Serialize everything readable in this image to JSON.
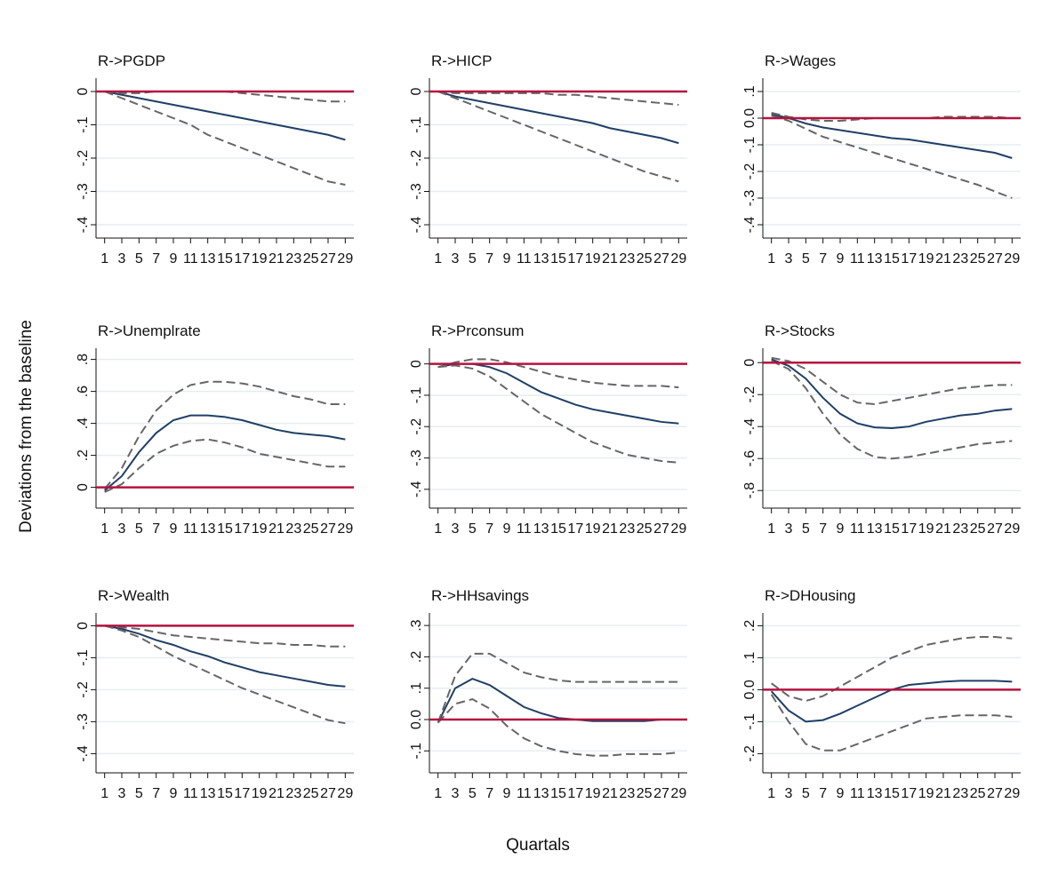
{
  "ylabel": "Deviations from the baseline",
  "xlabel": "Quartals",
  "chart_data": [
    {
      "type": "line",
      "title": "R->PGDP",
      "x": [
        1,
        3,
        5,
        7,
        9,
        11,
        13,
        15,
        17,
        19,
        21,
        23,
        25,
        27,
        29
      ],
      "xlim": [
        0,
        30
      ],
      "xticks": [
        1,
        3,
        5,
        7,
        9,
        11,
        13,
        15,
        17,
        19,
        21,
        23,
        25,
        27,
        29
      ],
      "ylim": [
        -0.44,
        0.04
      ],
      "yticks": [
        0,
        {
          "value": -0.1,
          "label": "-.1"
        },
        {
          "value": -0.2,
          "label": "-.2"
        },
        {
          "value": -0.3,
          "label": "-.3"
        },
        {
          "value": -0.4,
          "label": "-.4"
        }
      ],
      "grid": true,
      "hline": 0,
      "hline_color": "#b5123f",
      "series": [
        {
          "color": "#1f3f66",
          "style": "solid",
          "values": [
            0,
            -0.01,
            -0.02,
            -0.03,
            -0.04,
            -0.05,
            -0.06,
            -0.07,
            -0.08,
            -0.09,
            -0.1,
            -0.11,
            -0.12,
            -0.13,
            -0.145
          ]
        },
        {
          "color": "#666666",
          "style": "dashed",
          "values": [
            0,
            -0.005,
            -0.005,
            0,
            0,
            0,
            0,
            0,
            -0.005,
            -0.01,
            -0.015,
            -0.02,
            -0.025,
            -0.03,
            -0.03
          ]
        },
        {
          "color": "#666666",
          "style": "dashed",
          "values": [
            0,
            -0.02,
            -0.04,
            -0.06,
            -0.08,
            -0.1,
            -0.13,
            -0.15,
            -0.17,
            -0.19,
            -0.21,
            -0.23,
            -0.25,
            -0.27,
            -0.28
          ]
        }
      ]
    },
    {
      "type": "line",
      "title": "R->HICP",
      "x": [
        1,
        3,
        5,
        7,
        9,
        11,
        13,
        15,
        17,
        19,
        21,
        23,
        25,
        27,
        29
      ],
      "xlim": [
        0,
        30
      ],
      "xticks": [
        1,
        3,
        5,
        7,
        9,
        11,
        13,
        15,
        17,
        19,
        21,
        23,
        25,
        27,
        29
      ],
      "ylim": [
        -0.44,
        0.04
      ],
      "yticks": [
        0,
        {
          "value": -0.1,
          "label": "-.1"
        },
        {
          "value": -0.2,
          "label": "-.2"
        },
        {
          "value": -0.3,
          "label": "-.3"
        },
        {
          "value": -0.4,
          "label": "-.4"
        }
      ],
      "grid": true,
      "hline": 0,
      "hline_color": "#b5123f",
      "series": [
        {
          "color": "#1f3f66",
          "style": "solid",
          "values": [
            0,
            -0.015,
            -0.025,
            -0.035,
            -0.045,
            -0.055,
            -0.065,
            -0.075,
            -0.085,
            -0.095,
            -0.11,
            -0.12,
            -0.13,
            -0.14,
            -0.155
          ]
        },
        {
          "color": "#666666",
          "style": "dashed",
          "values": [
            0,
            -0.005,
            -0.005,
            -0.005,
            -0.005,
            -0.005,
            -0.005,
            -0.01,
            -0.01,
            -0.015,
            -0.02,
            -0.025,
            -0.03,
            -0.035,
            -0.04
          ]
        },
        {
          "color": "#666666",
          "style": "dashed",
          "values": [
            0,
            -0.02,
            -0.04,
            -0.06,
            -0.08,
            -0.1,
            -0.12,
            -0.14,
            -0.16,
            -0.18,
            -0.2,
            -0.22,
            -0.24,
            -0.255,
            -0.27
          ]
        }
      ]
    },
    {
      "type": "line",
      "title": "R->Wages",
      "x": [
        1,
        3,
        5,
        7,
        9,
        11,
        13,
        15,
        17,
        19,
        21,
        23,
        25,
        27,
        29
      ],
      "xlim": [
        0,
        30
      ],
      "xticks": [
        1,
        3,
        5,
        7,
        9,
        11,
        13,
        15,
        17,
        19,
        21,
        23,
        25,
        27,
        29
      ],
      "ylim": [
        -0.45,
        0.15
      ],
      "yticks": [
        {
          "value": 0.1,
          "label": ".1"
        },
        {
          "value": 0,
          "label": "0.0"
        },
        {
          "value": -0.1,
          "label": "-.1"
        },
        {
          "value": -0.2,
          "label": "-.2"
        },
        {
          "value": -0.3,
          "label": "-.3"
        },
        {
          "value": -0.4,
          "label": "-.4"
        }
      ],
      "grid": true,
      "hline": 0,
      "hline_color": "#b5123f",
      "series": [
        {
          "color": "#1f3f66",
          "style": "solid",
          "values": [
            0.015,
            0,
            -0.02,
            -0.035,
            -0.045,
            -0.055,
            -0.065,
            -0.075,
            -0.08,
            -0.09,
            -0.1,
            -0.11,
            -0.12,
            -0.13,
            -0.15
          ]
        },
        {
          "color": "#666666",
          "style": "dashed",
          "values": [
            0.02,
            0.005,
            -0.005,
            -0.01,
            -0.01,
            -0.005,
            0,
            0,
            0,
            0,
            0.005,
            0.005,
            0.005,
            0.005,
            0
          ]
        },
        {
          "color": "#666666",
          "style": "dashed",
          "values": [
            0.01,
            -0.01,
            -0.04,
            -0.07,
            -0.09,
            -0.11,
            -0.13,
            -0.15,
            -0.17,
            -0.19,
            -0.21,
            -0.23,
            -0.25,
            -0.275,
            -0.3
          ]
        }
      ]
    },
    {
      "type": "line",
      "title": "R->Unemplrate",
      "x": [
        1,
        3,
        5,
        7,
        9,
        11,
        13,
        15,
        17,
        19,
        21,
        23,
        25,
        27,
        29
      ],
      "xlim": [
        0,
        30
      ],
      "xticks": [
        1,
        3,
        5,
        7,
        9,
        11,
        13,
        15,
        17,
        19,
        21,
        23,
        25,
        27,
        29
      ],
      "ylim": [
        -0.13,
        0.87
      ],
      "yticks": [
        0,
        {
          "value": 0.2,
          "label": ".2"
        },
        {
          "value": 0.4,
          "label": ".4"
        },
        {
          "value": 0.6,
          "label": ".6"
        },
        {
          "value": 0.8,
          "label": ".8"
        }
      ],
      "grid": true,
      "hline": 0,
      "hline_color": "#b5123f",
      "series": [
        {
          "color": "#1f3f66",
          "style": "solid",
          "values": [
            -0.02,
            0.07,
            0.22,
            0.34,
            0.42,
            0.45,
            0.45,
            0.44,
            0.42,
            0.39,
            0.36,
            0.34,
            0.33,
            0.32,
            0.3
          ]
        },
        {
          "color": "#666666",
          "style": "dashed",
          "values": [
            -0.01,
            0.12,
            0.32,
            0.48,
            0.58,
            0.64,
            0.66,
            0.66,
            0.65,
            0.63,
            0.6,
            0.57,
            0.55,
            0.52,
            0.52
          ]
        },
        {
          "color": "#666666",
          "style": "dashed",
          "values": [
            -0.03,
            0.02,
            0.12,
            0.21,
            0.26,
            0.29,
            0.3,
            0.28,
            0.25,
            0.21,
            0.19,
            0.17,
            0.15,
            0.13,
            0.13
          ]
        }
      ]
    },
    {
      "type": "line",
      "title": "R->Prconsum",
      "x": [
        1,
        3,
        5,
        7,
        9,
        11,
        13,
        15,
        17,
        19,
        21,
        23,
        25,
        27,
        29
      ],
      "xlim": [
        0,
        30
      ],
      "xticks": [
        1,
        3,
        5,
        7,
        9,
        11,
        13,
        15,
        17,
        19,
        21,
        23,
        25,
        27,
        29
      ],
      "ylim": [
        -0.46,
        0.05
      ],
      "yticks": [
        0,
        {
          "value": -0.1,
          "label": "-.1"
        },
        {
          "value": -0.2,
          "label": "-.2"
        },
        {
          "value": -0.3,
          "label": "-.3"
        },
        {
          "value": -0.4,
          "label": "-.4"
        }
      ],
      "grid": true,
      "hline": 0,
      "hline_color": "#b5123f",
      "series": [
        {
          "color": "#1f3f66",
          "style": "solid",
          "values": [
            -0.01,
            0,
            0,
            -0.01,
            -0.03,
            -0.06,
            -0.09,
            -0.11,
            -0.13,
            -0.145,
            -0.155,
            -0.165,
            -0.175,
            -0.185,
            -0.19
          ]
        },
        {
          "color": "#666666",
          "style": "dashed",
          "values": [
            -0.01,
            0.005,
            0.015,
            0.015,
            0.005,
            -0.01,
            -0.025,
            -0.04,
            -0.05,
            -0.06,
            -0.065,
            -0.07,
            -0.07,
            -0.07,
            -0.075
          ]
        },
        {
          "color": "#666666",
          "style": "dashed",
          "values": [
            -0.01,
            -0.005,
            -0.015,
            -0.04,
            -0.08,
            -0.12,
            -0.16,
            -0.19,
            -0.22,
            -0.25,
            -0.27,
            -0.29,
            -0.3,
            -0.31,
            -0.315
          ]
        }
      ]
    },
    {
      "type": "line",
      "title": "R->Stocks",
      "x": [
        1,
        3,
        5,
        7,
        9,
        11,
        13,
        15,
        17,
        19,
        21,
        23,
        25,
        27,
        29
      ],
      "xlim": [
        0,
        30
      ],
      "xticks": [
        1,
        3,
        5,
        7,
        9,
        11,
        13,
        15,
        17,
        19,
        21,
        23,
        25,
        27,
        29
      ],
      "ylim": [
        -0.91,
        0.09
      ],
      "yticks": [
        0,
        {
          "value": -0.2,
          "label": "-.2"
        },
        {
          "value": -0.4,
          "label": "-.4"
        },
        {
          "value": -0.6,
          "label": "-.6"
        },
        {
          "value": -0.8,
          "label": "-.8"
        }
      ],
      "grid": true,
      "hline": 0,
      "hline_color": "#b5123f",
      "series": [
        {
          "color": "#1f3f66",
          "style": "solid",
          "values": [
            0.02,
            -0.02,
            -0.1,
            -0.22,
            -0.32,
            -0.38,
            -0.405,
            -0.41,
            -0.4,
            -0.37,
            -0.35,
            -0.33,
            -0.32,
            -0.3,
            -0.29
          ]
        },
        {
          "color": "#666666",
          "style": "dashed",
          "values": [
            0.03,
            0.01,
            -0.04,
            -0.12,
            -0.2,
            -0.25,
            -0.26,
            -0.24,
            -0.22,
            -0.2,
            -0.18,
            -0.16,
            -0.15,
            -0.14,
            -0.14
          ]
        },
        {
          "color": "#666666",
          "style": "dashed",
          "values": [
            0.01,
            -0.04,
            -0.16,
            -0.32,
            -0.45,
            -0.54,
            -0.59,
            -0.6,
            -0.59,
            -0.57,
            -0.55,
            -0.53,
            -0.51,
            -0.5,
            -0.49
          ]
        }
      ]
    },
    {
      "type": "line",
      "title": "R->Wealth",
      "x": [
        1,
        3,
        5,
        7,
        9,
        11,
        13,
        15,
        17,
        19,
        21,
        23,
        25,
        27,
        29
      ],
      "xlim": [
        0,
        30
      ],
      "xticks": [
        1,
        3,
        5,
        7,
        9,
        11,
        13,
        15,
        17,
        19,
        21,
        23,
        25,
        27,
        29
      ],
      "ylim": [
        -0.46,
        0.04
      ],
      "yticks": [
        0,
        {
          "value": -0.1,
          "label": "-.1"
        },
        {
          "value": -0.2,
          "label": "-.2"
        },
        {
          "value": -0.3,
          "label": "-.3"
        },
        {
          "value": -0.4,
          "label": "-.4"
        }
      ],
      "grid": true,
      "hline": 0,
      "hline_color": "#b5123f",
      "series": [
        {
          "color": "#1f3f66",
          "style": "solid",
          "values": [
            0,
            -0.01,
            -0.025,
            -0.045,
            -0.06,
            -0.08,
            -0.095,
            -0.115,
            -0.13,
            -0.145,
            -0.155,
            -0.165,
            -0.175,
            -0.185,
            -0.19
          ]
        },
        {
          "color": "#666666",
          "style": "dashed",
          "values": [
            0,
            -0.005,
            -0.01,
            -0.02,
            -0.03,
            -0.035,
            -0.04,
            -0.045,
            -0.05,
            -0.055,
            -0.055,
            -0.06,
            -0.06,
            -0.065,
            -0.065
          ]
        },
        {
          "color": "#666666",
          "style": "dashed",
          "values": [
            0,
            -0.015,
            -0.035,
            -0.065,
            -0.095,
            -0.12,
            -0.145,
            -0.17,
            -0.195,
            -0.215,
            -0.235,
            -0.255,
            -0.275,
            -0.295,
            -0.305
          ]
        }
      ]
    },
    {
      "type": "line",
      "title": "R->HHsavings",
      "x": [
        1,
        3,
        5,
        7,
        9,
        11,
        13,
        15,
        17,
        19,
        21,
        23,
        25,
        27,
        29
      ],
      "xlim": [
        0,
        30
      ],
      "xticks": [
        1,
        3,
        5,
        7,
        9,
        11,
        13,
        15,
        17,
        19,
        21,
        23,
        25,
        27,
        29
      ],
      "ylim": [
        -0.17,
        0.34
      ],
      "yticks": [
        {
          "value": -0.1,
          "label": "-.1"
        },
        {
          "value": 0,
          "label": "0.0"
        },
        {
          "value": 0.1,
          "label": ".1"
        },
        {
          "value": 0.2,
          "label": ".2"
        },
        {
          "value": 0.3,
          "label": ".3"
        }
      ],
      "grid": true,
      "hline": 0,
      "hline_color": "#b5123f",
      "series": [
        {
          "color": "#1f3f66",
          "style": "solid",
          "values": [
            -0.01,
            0.1,
            0.13,
            0.11,
            0.075,
            0.04,
            0.02,
            0.005,
            0,
            -0.005,
            -0.005,
            -0.005,
            -0.005,
            0,
            0
          ]
        },
        {
          "color": "#666666",
          "style": "dashed",
          "values": [
            -0.01,
            0.14,
            0.21,
            0.21,
            0.18,
            0.15,
            0.135,
            0.125,
            0.12,
            0.12,
            0.12,
            0.12,
            0.12,
            0.12,
            0.12
          ]
        },
        {
          "color": "#666666",
          "style": "dashed",
          "values": [
            -0.01,
            0.05,
            0.065,
            0.035,
            -0.02,
            -0.06,
            -0.085,
            -0.1,
            -0.11,
            -0.115,
            -0.115,
            -0.11,
            -0.11,
            -0.11,
            -0.105
          ]
        }
      ]
    },
    {
      "type": "line",
      "title": "R->DHousing",
      "x": [
        1,
        3,
        5,
        7,
        9,
        11,
        13,
        15,
        17,
        19,
        21,
        23,
        25,
        27,
        29
      ],
      "xlim": [
        0,
        30
      ],
      "xticks": [
        1,
        3,
        5,
        7,
        9,
        11,
        13,
        15,
        17,
        19,
        21,
        23,
        25,
        27,
        29
      ],
      "ylim": [
        -0.26,
        0.24
      ],
      "yticks": [
        {
          "value": -0.2,
          "label": "-.2"
        },
        {
          "value": -0.1,
          "label": "-.1"
        },
        {
          "value": 0,
          "label": "0.0"
        },
        {
          "value": 0.1,
          "label": ".1"
        },
        {
          "value": 0.2,
          "label": ".2"
        }
      ],
      "grid": true,
      "hline": 0,
      "hline_color": "#b5123f",
      "series": [
        {
          "color": "#1f3f66",
          "style": "solid",
          "values": [
            -0.005,
            -0.065,
            -0.1,
            -0.095,
            -0.075,
            -0.05,
            -0.025,
            0,
            0.015,
            0.02,
            0.025,
            0.028,
            0.028,
            0.028,
            0.025
          ]
        },
        {
          "color": "#666666",
          "style": "dashed",
          "values": [
            0.02,
            -0.02,
            -0.035,
            -0.02,
            0.01,
            0.04,
            0.07,
            0.1,
            0.12,
            0.14,
            0.15,
            0.16,
            0.165,
            0.165,
            0.16
          ]
        },
        {
          "color": "#666666",
          "style": "dashed",
          "values": [
            -0.015,
            -0.1,
            -0.17,
            -0.19,
            -0.19,
            -0.17,
            -0.15,
            -0.13,
            -0.11,
            -0.09,
            -0.085,
            -0.08,
            -0.08,
            -0.08,
            -0.085
          ]
        }
      ]
    }
  ]
}
